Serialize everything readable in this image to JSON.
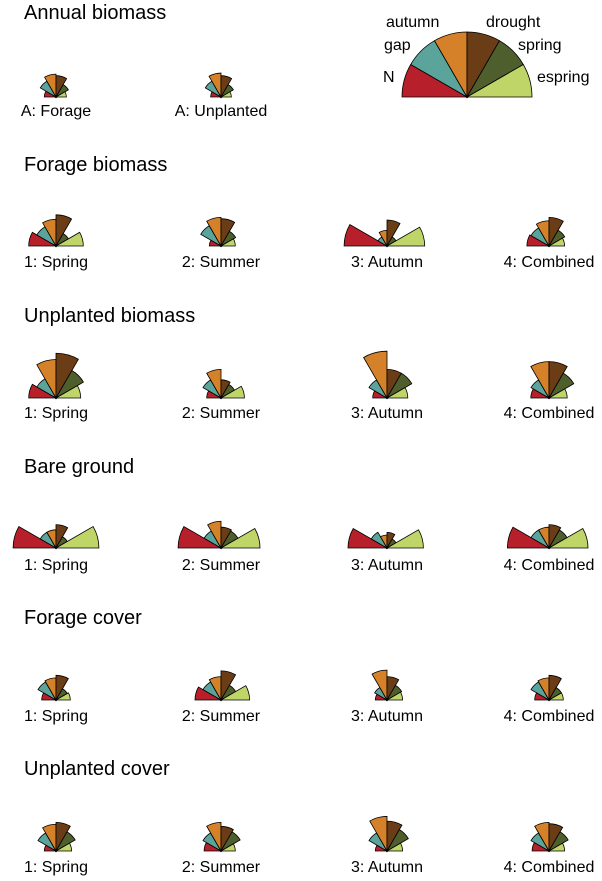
{
  "chart_data": {
    "type": "rose",
    "legend": {
      "categories": [
        "N",
        "gap",
        "autumn",
        "drought",
        "spring",
        "espring"
      ],
      "labels": [
        "N",
        "gap",
        "autumn",
        "drought",
        "spring",
        "espring"
      ],
      "colors": [
        "#b7202a",
        "#5ba49c",
        "#d5812a",
        "#6b3d16",
        "#4e5e2c",
        "#c0d568"
      ],
      "values": [
        1,
        1,
        1,
        1,
        1,
        1
      ]
    },
    "sections": [
      {
        "title": "Annual biomass",
        "panels": [
          {
            "label": "A: Forage",
            "values": [
              0.45,
              0.7,
              0.88,
              0.82,
              0.55,
              0.4
            ]
          },
          {
            "label": "A: Unplanted",
            "values": [
              0.4,
              0.7,
              0.92,
              0.82,
              0.55,
              0.4
            ]
          }
        ]
      },
      {
        "title": "Forage biomass",
        "panels": [
          {
            "label": "1: Spring",
            "values": [
              1.05,
              0.85,
              1.03,
              1.2,
              0.55,
              1.05
            ]
          },
          {
            "label": "2: Summer",
            "values": [
              0.45,
              0.9,
              1.1,
              1.05,
              0.65,
              0.55
            ]
          },
          {
            "label": "3: Autumn",
            "values": [
              1.65,
              0.4,
              0.6,
              1.0,
              0.4,
              1.45
            ]
          },
          {
            "label": "4: Combined",
            "values": [
              0.85,
              0.8,
              0.97,
              1.1,
              0.7,
              0.6
            ]
          }
        ]
      },
      {
        "title": "Unplanted biomass",
        "panels": [
          {
            "label": "1: Spring",
            "values": [
              1.05,
              0.85,
              1.48,
              1.72,
              1.22,
              0.95
            ]
          },
          {
            "label": "2: Summer",
            "values": [
              0.55,
              0.8,
              1.1,
              0.7,
              0.6,
              0.9
            ]
          },
          {
            "label": "3: Autumn",
            "values": [
              0.55,
              0.8,
              1.8,
              1.1,
              1.1,
              0.8
            ]
          },
          {
            "label": "4: Combined",
            "values": [
              0.7,
              0.8,
              1.4,
              1.4,
              1.1,
              0.7
            ]
          }
        ]
      },
      {
        "title": "Bare ground",
        "panels": [
          {
            "label": "1: Spring",
            "values": [
              1.65,
              0.7,
              0.7,
              0.9,
              0.5,
              1.65
            ]
          },
          {
            "label": "2: Summer",
            "values": [
              1.65,
              0.75,
              1.03,
              0.8,
              0.75,
              1.5
            ]
          },
          {
            "label": "3: Autumn",
            "values": [
              1.5,
              0.7,
              0.5,
              0.6,
              0.4,
              1.4
            ]
          },
          {
            "label": "4: Combined",
            "values": [
              1.6,
              0.8,
              0.8,
              0.9,
              0.8,
              1.5
            ]
          }
        ]
      },
      {
        "title": "Forage cover",
        "panels": [
          {
            "label": "1: Spring",
            "values": [
              0.55,
              0.8,
              0.85,
              0.95,
              0.5,
              0.55
            ]
          },
          {
            "label": "2: Summer",
            "values": [
              1.0,
              0.8,
              0.9,
              1.12,
              0.65,
              1.1
            ]
          },
          {
            "label": "3: Autumn",
            "values": [
              0.45,
              0.55,
              1.15,
              0.9,
              0.65,
              0.6
            ]
          },
          {
            "label": "4: Combined",
            "values": [
              0.55,
              0.8,
              0.85,
              0.95,
              0.55,
              0.55
            ]
          }
        ]
      },
      {
        "title": "Unplanted cover",
        "panels": [
          {
            "label": "1: Spring",
            "values": [
              0.45,
              0.8,
              1.03,
              1.1,
              0.85,
              0.6
            ]
          },
          {
            "label": "2: Summer",
            "values": [
              0.65,
              0.8,
              1.1,
              0.95,
              0.85,
              0.55
            ]
          },
          {
            "label": "3: Autumn",
            "values": [
              0.45,
              0.8,
              1.33,
              1.15,
              0.95,
              0.6
            ]
          },
          {
            "label": "4: Combined",
            "values": [
              0.65,
              0.8,
              1.1,
              1.05,
              0.85,
              0.6
            ]
          }
        ]
      }
    ]
  }
}
